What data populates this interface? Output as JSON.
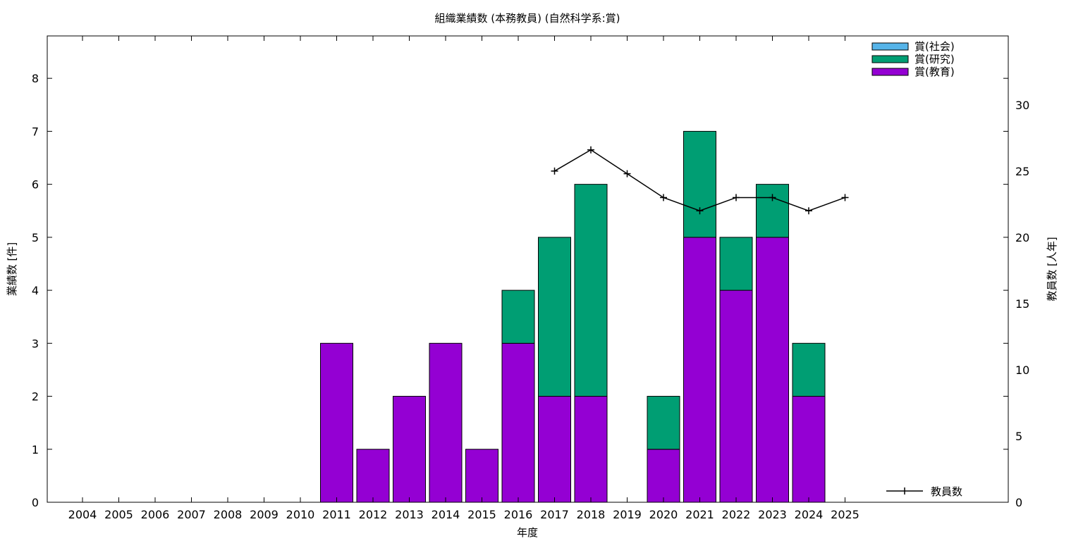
{
  "chart_data": {
    "type": "bar",
    "title": "組織業績数 (本務教員) (自然科学系:賞)",
    "xlabel": "年度",
    "ylabel": "業績数 [件]",
    "y2label": "教員数 [人年]",
    "categories": [
      "2004",
      "2005",
      "2006",
      "2007",
      "2008",
      "2009",
      "2010",
      "2011",
      "2012",
      "2013",
      "2014",
      "2015",
      "2016",
      "2017",
      "2018",
      "2019",
      "2020",
      "2021",
      "2022",
      "2023",
      "2024",
      "2025"
    ],
    "ylim": [
      0,
      8.8
    ],
    "y2lim": [
      0,
      35.2
    ],
    "yticks": [
      0,
      1,
      2,
      3,
      4,
      5,
      6,
      7,
      8
    ],
    "y2ticks": [
      0,
      5,
      10,
      15,
      20,
      25,
      30
    ],
    "stacked": true,
    "series": [
      {
        "name": "賞(教育)",
        "color": "#9400d3",
        "values": [
          0,
          0,
          0,
          0,
          0,
          0,
          0,
          3,
          1,
          2,
          3,
          1,
          3,
          2,
          2,
          0,
          1,
          5,
          4,
          5,
          2,
          0
        ]
      },
      {
        "name": "賞(研究)",
        "color": "#009e73",
        "values": [
          0,
          0,
          0,
          0,
          0,
          0,
          0,
          0,
          0,
          0,
          0,
          0,
          1,
          3,
          4,
          0,
          1,
          2,
          1,
          1,
          1,
          0
        ]
      },
      {
        "name": "賞(社会)",
        "color": "#56b4e9",
        "values": [
          0,
          0,
          0,
          0,
          0,
          0,
          0,
          0,
          0,
          0,
          0,
          0,
          0,
          0,
          0,
          0,
          0,
          0,
          0,
          0,
          0,
          0
        ]
      }
    ],
    "line": {
      "name": "教員数",
      "axis": "right",
      "color": "#000000",
      "x": [
        "2017",
        "2018",
        "2019",
        "2020",
        "2021",
        "2022",
        "2023",
        "2024",
        "2025"
      ],
      "values": [
        25,
        26.6,
        24.8,
        23,
        22,
        23,
        23,
        22,
        23
      ]
    },
    "legend_top": [
      "賞(社会)",
      "賞(研究)",
      "賞(教育)"
    ],
    "legend_position": "top-right",
    "grid": false
  }
}
